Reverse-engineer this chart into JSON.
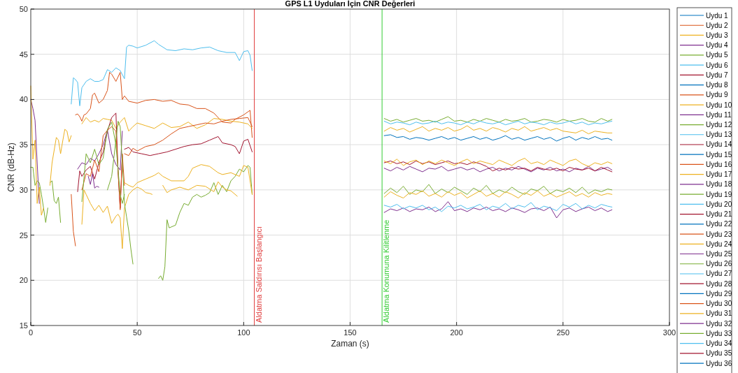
{
  "chart_data": {
    "type": "line",
    "title": "GPS L1 Uyduları İçin CNR Değerleri",
    "xlabel": "Zaman (s)",
    "ylabel": "CNR (dB-Hz)",
    "xlim": [
      0,
      300
    ],
    "xticks": [
      0,
      50,
      100,
      150,
      200,
      250,
      300
    ],
    "ylim": [
      15,
      50
    ],
    "yticks": [
      15,
      20,
      25,
      30,
      35,
      40,
      45,
      50
    ],
    "grid": true,
    "legend": "right",
    "line_style": "solid",
    "marker": "none",
    "ref_lines": [
      {
        "axis": "x",
        "value": 105,
        "label": "Aldatma Saldırısı Başlangıcı",
        "color": "#e03c3c"
      },
      {
        "axis": "x",
        "value": 165,
        "label": "Aldatma Konumuna Kilitlenme",
        "color": "#33cc33"
      }
    ],
    "series": [
      {
        "name": "Uydu 1",
        "color": "#0072bd",
        "x": [
          166,
          169,
          172,
          175,
          178,
          181,
          184,
          187,
          190,
          193,
          196,
          199,
          202,
          205,
          208,
          211,
          214,
          217,
          220,
          223,
          226,
          229,
          232,
          235,
          238,
          241,
          244,
          247,
          250,
          253,
          256,
          259,
          262,
          265,
          268,
          271,
          273
        ],
        "values": [
          36.0,
          36.1,
          35.8,
          35.9,
          35.6,
          35.8,
          35.7,
          35.5,
          35.7,
          35.9,
          35.6,
          35.8,
          35.5,
          35.7,
          35.9,
          35.6,
          35.8,
          35.5,
          35.7,
          36.0,
          35.6,
          35.8,
          35.5,
          35.7,
          35.9,
          35.6,
          35.8,
          35.4,
          35.7,
          35.9,
          35.5,
          35.8,
          35.6,
          35.9,
          35.6,
          35.7,
          35.5
        ]
      },
      {
        "name": "Uydu 2",
        "color": "#d95319",
        "x": [
          21,
          22,
          23,
          24,
          25,
          26,
          28,
          29,
          30,
          32,
          34,
          36,
          37,
          38,
          40,
          42,
          43,
          44,
          46,
          48,
          50,
          54,
          58,
          62,
          66,
          70,
          74,
          78,
          82,
          86,
          90,
          94,
          96,
          100,
          103,
          104
        ],
        "values": [
          38.3,
          38.4,
          38.1,
          37.6,
          38.3,
          38.4,
          39,
          40.5,
          40.7,
          39.6,
          40,
          41,
          43,
          42.8,
          42,
          43,
          40,
          40.4,
          39.8,
          39.7,
          39.6,
          39.9,
          40,
          39.8,
          39.9,
          39.5,
          39.4,
          39,
          39,
          38.5,
          37.5,
          37.4,
          37.8,
          38.3,
          38.8,
          35.8
        ]
      },
      {
        "name": "Uydu 3",
        "color": "#edb120",
        "x": [
          24,
          26,
          28,
          30,
          32,
          34,
          36,
          38,
          40,
          42,
          44,
          46,
          48,
          50,
          54,
          58,
          62,
          66,
          70,
          74,
          78,
          82,
          86,
          90,
          94,
          98,
          102,
          104
        ],
        "values": [
          37.3,
          38,
          37.5,
          37.7,
          37.5,
          37.9,
          37.8,
          37.7,
          36.8,
          37.5,
          38,
          36.5,
          37,
          37.4,
          37.1,
          36.8,
          37.4,
          36.9,
          37,
          37.5,
          36.8,
          37.2,
          37.9,
          37.8,
          37.6,
          37.5,
          37.3,
          36.8
        ]
      },
      {
        "name": "Uydu 4",
        "color": "#7e2f8e",
        "x": [
          0,
          1,
          2,
          3,
          4,
          100,
          166,
          169,
          172,
          175,
          178,
          181,
          184,
          187,
          190,
          193,
          196,
          199,
          202,
          205,
          208,
          211,
          214,
          217,
          220,
          223,
          226,
          229,
          232,
          235,
          238,
          241,
          244,
          247,
          250,
          253,
          256,
          259,
          262,
          265,
          268,
          271,
          273
        ],
        "values": [
          40,
          39,
          37.7,
          33,
          28.5,
          null,
          32.4,
          32.1,
          32.5,
          32.2,
          32.6,
          32.3,
          32.0,
          32.4,
          32.3,
          32.6,
          32.1,
          32.3,
          32.5,
          32.2,
          32.4,
          32.0,
          32.3,
          32.5,
          32.1,
          32.4,
          32.2,
          32.6,
          32.3,
          32.0,
          32.4,
          32.2,
          32.5,
          32.1,
          32.3,
          32.0,
          32.4,
          32.2,
          32.6,
          32.1,
          32.3,
          32.5,
          32.2
        ]
      },
      {
        "name": "Uydu 5",
        "color": "#77ac30",
        "x": [
          60,
          61,
          62,
          63,
          64,
          65,
          66,
          68,
          70,
          72,
          74,
          76,
          78,
          80,
          82,
          84,
          86,
          88,
          90,
          92,
          94,
          96,
          98,
          100,
          102,
          103,
          104,
          130,
          166,
          169,
          172,
          175,
          178,
          181,
          184,
          187,
          190,
          193,
          196,
          199,
          202,
          205,
          208,
          211,
          214,
          217,
          220,
          223,
          226,
          229,
          232,
          235,
          238,
          241,
          244,
          247,
          250,
          253,
          256,
          259,
          262,
          265,
          268,
          271,
          273
        ],
        "values": [
          20.2,
          20.5,
          20,
          21.5,
          26.7,
          25.8,
          25.9,
          26.1,
          27.5,
          28.5,
          28.3,
          29.2,
          29.5,
          29.2,
          29.4,
          29.7,
          30.8,
          29.5,
          30.5,
          29.8,
          31,
          31.5,
          32.3,
          32,
          32.7,
          32.5,
          29.5,
          null,
          37.9,
          37.6,
          37.8,
          37.5,
          37.7,
          37.9,
          37.6,
          37.7,
          37.5,
          37.8,
          38.1,
          37.6,
          37.7,
          37.5,
          37.8,
          37.6,
          37.9,
          37.7,
          37.5,
          37.8,
          37.6,
          37.7,
          37.9,
          37.5,
          37.6,
          37.8,
          37.7,
          37.5,
          37.8,
          37.6,
          37.7,
          37.9,
          37.6,
          37.5,
          37.9,
          37.6,
          37.8
        ]
      },
      {
        "name": "Uydu 6",
        "color": "#4dbeee"
      },
      {
        "name": "Uydu 7",
        "color": "#a2142f",
        "x": [
          166,
          169,
          172,
          175,
          178,
          181,
          184,
          187,
          190,
          193,
          196,
          199,
          202,
          205,
          208,
          211,
          214,
          217,
          220,
          223,
          226,
          229,
          232,
          235,
          238,
          241,
          244,
          247,
          250,
          253,
          256,
          259,
          262,
          265,
          268,
          271,
          273
        ],
        "values": [
          33.0,
          33.2,
          32.9,
          33.1,
          32.8,
          33.2,
          32.9,
          33.1,
          32.8,
          33.0,
          33.2,
          32.9,
          33.0,
          32.8,
          33.1,
          32.9,
          32.6,
          32.1,
          32.4,
          32.2,
          32.5,
          32.3,
          32.4,
          32.1,
          32.5,
          32.3,
          32.2,
          32.4,
          32.1,
          32.5,
          32.3,
          32.2,
          32.4,
          32.1,
          32.5,
          32.2,
          32.0
        ]
      },
      {
        "name": "Uydu 8",
        "color": "#0072bd"
      },
      {
        "name": "Uydu 9",
        "color": "#d95319",
        "x": [
          44,
          46,
          48,
          50,
          54,
          58,
          62,
          66,
          70,
          74,
          78,
          82,
          86,
          90,
          94,
          98,
          102,
          104
        ],
        "values": [
          34,
          33.8,
          34.6,
          34.3,
          34.8,
          35,
          35.5,
          36.2,
          36.8,
          37,
          37.2,
          37.4,
          37.3,
          37.6,
          37.8,
          37.9,
          38,
          37
        ]
      },
      {
        "name": "Uydu 10",
        "color": "#edb120",
        "x": [
          62,
          64,
          66,
          70,
          74,
          78,
          82,
          86,
          88,
          90,
          92,
          94,
          97,
          130,
          166,
          169,
          172,
          175,
          178,
          181,
          184,
          187,
          190,
          193,
          196,
          199,
          202,
          205,
          208,
          211,
          214,
          217,
          220,
          223,
          226,
          229,
          232,
          235,
          238,
          241,
          244,
          247,
          250,
          253,
          256,
          259,
          262,
          265,
          268,
          271,
          273
        ],
        "values": [
          30.5,
          29.7,
          30,
          30.3,
          30,
          30.5,
          30.4,
          29.8,
          30.9,
          30.3,
          30,
          29.9,
          29.3,
          null,
          36.5,
          36.9,
          36.6,
          36.8,
          36.4,
          36.7,
          37.0,
          36.5,
          36.8,
          36.6,
          36.9,
          36.5,
          36.7,
          37.1,
          36.6,
          36.8,
          36.5,
          36.9,
          36.7,
          36.4,
          36.8,
          36.6,
          37.0,
          36.5,
          36.7,
          36.9,
          36.6,
          36.8,
          36.5,
          36.4,
          36.3,
          36.6,
          36.2,
          36.5,
          36.4,
          36.3,
          36.3
        ]
      },
      {
        "name": "Uydu 11",
        "color": "#7e2f8e",
        "x": [
          22,
          24,
          26,
          28,
          30,
          32,
          34,
          36,
          38,
          40,
          42,
          43,
          100,
          166,
          169,
          172,
          175,
          178,
          181,
          184,
          187,
          190,
          193,
          196,
          199,
          202,
          205,
          208,
          211,
          214,
          217,
          220,
          223,
          226,
          229,
          232,
          235,
          238,
          241,
          244,
          247,
          250,
          253,
          256,
          259,
          262,
          265,
          268,
          271,
          273
        ],
        "values": [
          32.3,
          33,
          32.8,
          33.5,
          33.2,
          34,
          35,
          36.6,
          34,
          32.8,
          32.2,
          36.5,
          null,
          27.5,
          27.9,
          27.7,
          28.0,
          27.6,
          27.9,
          27.8,
          28.1,
          27.6,
          27.9,
          28.7,
          27.7,
          27.9,
          27.6,
          28.0,
          27.8,
          28.1,
          27.7,
          27.9,
          27.6,
          28.0,
          27.8,
          27.5,
          27.9,
          28.0,
          27.7,
          28.1,
          26.9,
          27.8,
          28.0,
          27.6,
          27.9,
          28.1,
          27.7,
          28.0,
          27.6,
          27.8
        ]
      },
      {
        "name": "Uydu 12",
        "color": "#77ac30",
        "x": [
          0,
          1,
          2,
          3,
          4,
          5,
          6,
          7,
          8,
          100,
          166,
          169,
          172,
          175,
          178,
          181,
          184,
          187,
          190,
          193,
          196,
          199,
          202,
          205,
          208,
          211,
          214,
          217,
          220,
          223,
          226,
          229,
          232,
          235,
          238,
          241,
          244,
          247,
          250,
          253,
          256,
          259,
          262,
          265,
          268,
          271,
          273
        ],
        "values": [
          32.5,
          32.5,
          30.5,
          31,
          30.8,
          29.5,
          28,
          26.4,
          28,
          null,
          29.6,
          30.2,
          29.7,
          30.4,
          29.5,
          30.0,
          29.8,
          30.6,
          29.6,
          30.1,
          29.7,
          30.3,
          29.9,
          29.5,
          30.2,
          29.8,
          30.5,
          29.6,
          30.0,
          29.7,
          30.3,
          29.8,
          29.5,
          30.1,
          29.9,
          30.4,
          29.6,
          30.0,
          29.8,
          30.2,
          29.7,
          30.3,
          29.6,
          30.0,
          29.8,
          30.1,
          30.0
        ]
      },
      {
        "name": "Uydu 13",
        "color": "#4dbeee",
        "x": [
          166,
          169,
          172,
          175,
          178,
          181,
          184,
          187,
          190,
          193,
          196,
          199,
          202,
          205,
          208,
          211,
          214,
          217,
          220,
          223,
          226,
          229,
          232,
          235,
          238,
          241,
          244,
          247,
          250,
          253,
          256,
          259,
          262,
          265,
          268,
          271,
          273
        ],
        "values": [
          37.6,
          37.3,
          37.5,
          37.4,
          37.2,
          37.5,
          37.3,
          37.4,
          37.6,
          37.3,
          37.5,
          37.4,
          37.2,
          37.5,
          37.3,
          37.6,
          37.4,
          37.3,
          37.5,
          37.2,
          37.4,
          37.6,
          37.3,
          37.5,
          37.4,
          37.2,
          37.5,
          37.3,
          37.4,
          37.6,
          37.3,
          37.5,
          37.2,
          37.4,
          37.3,
          37.5,
          37.6
        ]
      },
      {
        "name": "Uydu 14",
        "color": "#a2142f",
        "x": [
          44,
          46,
          48,
          52,
          56,
          60,
          64,
          68,
          72,
          76,
          80,
          84,
          88,
          90,
          94,
          96,
          98,
          100,
          102,
          104
        ],
        "values": [
          34.5,
          34.7,
          34.2,
          34,
          33.8,
          34,
          34.2,
          34.5,
          34.8,
          35,
          35.1,
          35.5,
          35.9,
          35.2,
          35,
          34.8,
          34,
          35.4,
          35.6,
          34.2
        ]
      },
      {
        "name": "Uydu 15",
        "color": "#0072bd"
      },
      {
        "name": "Uydu 16",
        "color": "#d95319",
        "x": [
          19,
          20,
          21
        ],
        "values": [
          29.5,
          25.4,
          23.8
        ]
      },
      {
        "name": "Uydu 17",
        "color": "#edb120",
        "x": [
          24,
          25,
          26,
          28,
          30,
          32,
          34,
          36,
          38,
          40,
          41,
          42,
          43,
          44,
          46,
          48,
          50,
          52,
          54,
          56,
          57,
          100,
          166,
          169,
          172,
          175,
          178,
          181,
          184,
          187,
          190,
          193,
          196,
          199,
          202,
          205,
          208,
          211,
          214,
          217,
          220,
          223,
          226,
          229,
          232,
          235,
          238,
          241,
          244,
          247,
          250,
          253,
          256,
          259,
          262,
          265,
          268,
          271,
          273
        ],
        "values": [
          26.2,
          30,
          29.5,
          28.5,
          27.7,
          28.3,
          27.5,
          28.2,
          26.3,
          27.1,
          27.3,
          26.9,
          23.5,
          28,
          29.5,
          30,
          30.3,
          30.1,
          29.7,
          29.6,
          29.5,
          null,
          33.2,
          32.9,
          33.4,
          32.7,
          33.1,
          33.3,
          32.8,
          33.2,
          32.9,
          33.3,
          33.0,
          32.7,
          33.1,
          33.4,
          32.9,
          33.2,
          33.0,
          32.8,
          33.3,
          33.0,
          32.7,
          33.2,
          33.5,
          32.9,
          33.1,
          32.8,
          33.3,
          33.0,
          32.7,
          33.2,
          33.4,
          32.9,
          32.6,
          33.0,
          32.8,
          33.1,
          32.9
        ]
      },
      {
        "name": "Uydu 18",
        "color": "#7e2f8e",
        "x": [
          27,
          28,
          29,
          30,
          31,
          32
        ],
        "values": [
          31.5,
          30.6,
          31.8,
          30.2,
          30.4,
          30.3
        ]
      },
      {
        "name": "Uydu 19",
        "color": "#77ac30",
        "x": [
          9,
          10,
          11,
          12,
          13,
          14
        ],
        "values": [
          30.8,
          31,
          28.8,
          28.5,
          29.2,
          26.4
        ]
      },
      {
        "name": "Uydu 20",
        "color": "#4dbeee",
        "x": [
          166,
          169,
          172,
          175,
          178,
          181,
          184,
          187,
          190,
          193,
          196,
          199,
          202,
          205,
          208,
          211,
          214,
          217,
          220,
          223,
          226,
          229,
          232,
          235,
          238,
          241,
          244,
          247,
          250,
          253,
          256,
          259,
          262,
          265,
          268,
          271,
          273
        ],
        "values": [
          28.3,
          28.1,
          28.4,
          27.9,
          28.2,
          28.0,
          28.3,
          27.8,
          28.1,
          27.6,
          28.2,
          28.0,
          28.3,
          27.9,
          28.1,
          28.4,
          27.8,
          28.2,
          28.0,
          28.5,
          27.9,
          28.3,
          28.1,
          28.6,
          27.8,
          28.2,
          28.0,
          27.7,
          28.4,
          28.1,
          28.5,
          27.9,
          28.3,
          28.0,
          28.4,
          28.2,
          28.1
        ]
      },
      {
        "name": "Uydu 21",
        "color": "#a2142f",
        "x": [
          22,
          23,
          24,
          26,
          28,
          30,
          32,
          34,
          36,
          38,
          40,
          41,
          42,
          43
        ],
        "values": [
          29.8,
          32.1,
          31.5,
          32.2,
          32.6,
          31.2,
          33,
          34.2,
          36.5,
          38,
          38.5,
          32,
          28,
          33.8
        ]
      },
      {
        "name": "Uydu 22",
        "color": "#0072bd"
      },
      {
        "name": "Uydu 23",
        "color": "#d95319",
        "x": [
          24,
          26,
          28,
          30,
          32,
          34,
          36,
          38,
          40,
          42,
          43,
          44
        ],
        "values": [
          30,
          31.8,
          31.5,
          33.3,
          32,
          36,
          36.6,
          37,
          36.5,
          27.8,
          34,
          30.5
        ]
      },
      {
        "name": "Uydu 24",
        "color": "#edb120",
        "x": [
          0,
          1,
          2,
          3,
          4,
          5,
          6,
          7.5,
          9,
          10,
          12,
          13,
          14,
          15,
          16,
          17,
          18,
          19,
          100,
          166,
          169,
          172,
          175,
          178,
          181,
          184,
          187,
          190,
          193,
          196,
          199,
          202,
          205,
          208,
          211,
          214,
          217,
          220,
          223,
          226,
          229,
          232,
          235,
          238,
          241,
          244,
          247,
          250,
          253,
          256,
          259,
          262,
          265,
          268,
          271,
          273
        ],
        "values": [
          41.5,
          33.4,
          35.5,
          28.5,
          30.3,
          27.2,
          28,
          null,
          30.5,
          33,
          35.8,
          35.5,
          34,
          35.4,
          36.7,
          36.5,
          35.3,
          36,
          null,
          29.2,
          29.8,
          29.4,
          29.1,
          29.7,
          29.5,
          29.9,
          29.3,
          29.6,
          29.2,
          29.8,
          29.4,
          29.7,
          29.1,
          29.5,
          29.9,
          29.3,
          29.6,
          29.2,
          29.8,
          29.5,
          29.1,
          29.7,
          29.4,
          29.9,
          29.3,
          29.6,
          29.2,
          29.5,
          29.8,
          29.3,
          29.6,
          29.2,
          29.7,
          29.4,
          29.6,
          29.5
        ]
      },
      {
        "name": "Uydu 25",
        "color": "#7e2f8e"
      },
      {
        "name": "Uydu 26",
        "color": "#77ac30",
        "x": [
          36,
          38,
          40,
          41,
          42,
          43,
          44,
          45,
          46,
          47,
          48
        ],
        "values": [
          30,
          31.5,
          35.5,
          37.6,
          37,
          33,
          28.5,
          27,
          25.5,
          23.5,
          21.8
        ]
      },
      {
        "name": "Uydu 27",
        "color": "#4dbeee",
        "x": [
          19,
          20,
          21,
          22,
          23,
          24,
          26,
          28,
          30,
          32,
          34,
          36,
          38,
          40,
          42,
          44,
          45,
          46,
          48,
          50,
          54,
          58,
          60,
          64,
          68,
          72,
          76,
          80,
          84,
          88,
          92,
          96,
          98,
          100,
          102,
          103,
          104
        ],
        "values": [
          39.5,
          42.4,
          42.2,
          41.9,
          39.3,
          41.3,
          42,
          42.3,
          42,
          42,
          42.2,
          43.3,
          43,
          43.5,
          43.2,
          42.3,
          45.8,
          46,
          45.9,
          45.7,
          46,
          46.5,
          46.1,
          45.5,
          45.4,
          45.6,
          45.5,
          45.7,
          45.8,
          45.4,
          45.2,
          45.2,
          44.3,
          45.3,
          45.4,
          44.9,
          43.2
        ]
      },
      {
        "name": "Uydu 28",
        "color": "#a2142f"
      },
      {
        "name": "Uydu 29",
        "color": "#0072bd"
      },
      {
        "name": "Uydu 30",
        "color": "#d95319"
      },
      {
        "name": "Uydu 31",
        "color": "#edb120",
        "x": [
          44,
          46,
          48,
          50,
          54,
          58,
          60,
          62,
          66,
          68,
          72,
          74,
          76,
          80,
          84,
          88,
          90,
          94,
          98,
          100,
          102,
          104
        ],
        "values": [
          30.8,
          30.5,
          30.3,
          30.8,
          31.2,
          31.6,
          31.9,
          31.5,
          31,
          31,
          31,
          31.5,
          32.4,
          32.8,
          32.6,
          31.9,
          31.7,
          31.9,
          31.5,
          32.7,
          32.5,
          29.5
        ]
      },
      {
        "name": "Uydu 32",
        "color": "#7e2f8e"
      },
      {
        "name": "Uydu 33",
        "color": "#77ac30",
        "x": [
          24,
          26,
          28,
          30,
          32,
          34,
          36,
          38,
          40,
          42,
          43,
          44
        ],
        "values": [
          28.7,
          34,
          33,
          34.5,
          32.8,
          33.5,
          36.7,
          37.5,
          35,
          29.5,
          28.5,
          29.5
        ]
      },
      {
        "name": "Uydu 34",
        "color": "#4dbeee"
      },
      {
        "name": "Uydu 35",
        "color": "#a2142f"
      },
      {
        "name": "Uydu 36",
        "color": "#0072bd"
      }
    ]
  }
}
